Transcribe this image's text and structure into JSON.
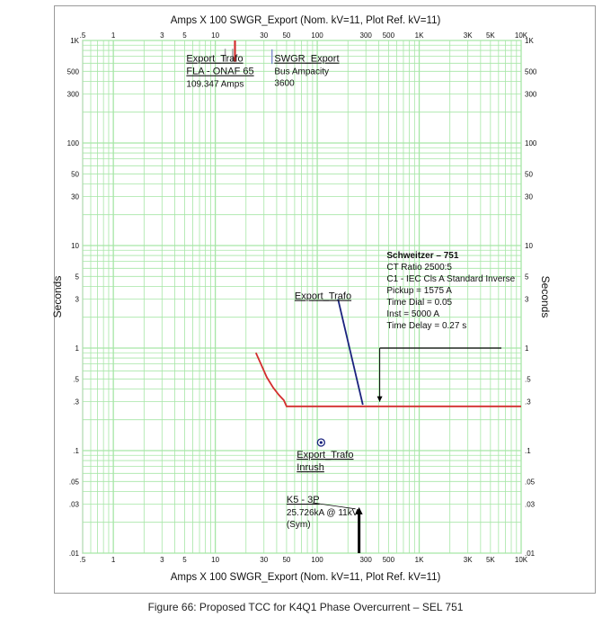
{
  "caption": "Figure 66: Proposed TCC for K4Q1 Phase Overcurrent – SEL 751",
  "chart_data": {
    "type": "line",
    "title_top": "Amps  X  100   SWGR_Export (Nom. kV=11, Plot Ref. kV=11)",
    "title_bottom": "Amps  X  100   SWGR_Export (Nom. kV=11, Plot Ref. kV=11)",
    "xlabel": "",
    "ylabel_left": "Seconds",
    "ylabel_right": "Seconds",
    "x_scale": "log",
    "y_scale": "log",
    "xlim": [
      0.5,
      10000
    ],
    "ylim": [
      0.01,
      1000
    ],
    "grid": true,
    "colors": {
      "grid": "#a6e6a6",
      "relay": "#d32f2f",
      "trafo": "#1a237e",
      "fault": "#000000",
      "marker": "#1a237e"
    },
    "x_ticks": [
      {
        "v": 0.5,
        "t": ".5"
      },
      {
        "v": 1,
        "t": "1"
      },
      {
        "v": 3,
        "t": "3"
      },
      {
        "v": 5,
        "t": "5"
      },
      {
        "v": 10,
        "t": "10"
      },
      {
        "v": 30,
        "t": "30"
      },
      {
        "v": 50,
        "t": "50"
      },
      {
        "v": 100,
        "t": "100"
      },
      {
        "v": 300,
        "t": "300"
      },
      {
        "v": 500,
        "t": "500"
      },
      {
        "v": 1000,
        "t": "1K"
      },
      {
        "v": 3000,
        "t": "3K"
      },
      {
        "v": 5000,
        "t": "5K"
      },
      {
        "v": 10000,
        "t": "10K"
      }
    ],
    "y_ticks": [
      {
        "v": 0.01,
        "t": ".01"
      },
      {
        "v": 0.03,
        "t": ".03"
      },
      {
        "v": 0.05,
        "t": ".05"
      },
      {
        "v": 0.1,
        "t": ".1"
      },
      {
        "v": 0.3,
        "t": ".3"
      },
      {
        "v": 0.5,
        "t": ".5"
      },
      {
        "v": 1,
        "t": "1"
      },
      {
        "v": 3,
        "t": "3"
      },
      {
        "v": 5,
        "t": "5"
      },
      {
        "v": 10,
        "t": "10"
      },
      {
        "v": 30,
        "t": "30"
      },
      {
        "v": 50,
        "t": "50"
      },
      {
        "v": 100,
        "t": "100"
      },
      {
        "v": 300,
        "t": "300"
      },
      {
        "v": 500,
        "t": "500"
      },
      {
        "v": 1000,
        "t": "1K"
      }
    ],
    "series": [
      {
        "id": "relay-curve",
        "color": "#d32f2f",
        "x": [
          25,
          28,
          32,
          37,
          42,
          47,
          50,
          60,
          100,
          300,
          1000,
          10000
        ],
        "y": [
          0.9,
          0.7,
          0.52,
          0.41,
          0.35,
          0.31,
          0.27,
          0.27,
          0.27,
          0.27,
          0.27,
          0.27
        ]
      },
      {
        "id": "export-trafo-damage",
        "color": "#1a237e",
        "x": [
          160,
          280
        ],
        "y": [
          3.0,
          0.28
        ]
      },
      {
        "id": "fla-marker",
        "color": "#d32f2f",
        "x": [
          15.6,
          15.6
        ],
        "y": [
          620,
          1000
        ]
      }
    ],
    "bus_ampacity_marker": {
      "x": 36,
      "y": [
        590,
        820
      ],
      "color": "#7986cb"
    },
    "fla_grey_marks": {
      "x": [
        12.5,
        14.8
      ],
      "y": [
        620,
        830
      ],
      "color": "#9e9e9e"
    },
    "inrush_point": {
      "x": 109,
      "y": 0.12
    },
    "fault_arrow": {
      "x": 257.26,
      "y_from": 0.01,
      "y_to": 0.027
    },
    "relay_leader": {
      "x": 410,
      "y_from": 1.0,
      "y_to": 0.3,
      "line_to_x": 6400
    },
    "annotations": [
      {
        "id": "fla-title",
        "lines": [
          "Export_Trafo",
          "FLA - ONAF 65"
        ],
        "underline": true,
        "x": 5.2,
        "y": 620,
        "extra": [
          "109.347 Amps"
        ]
      },
      {
        "id": "bus-title",
        "lines": [
          "SWGR_Export"
        ],
        "underline": true,
        "x": 38,
        "y": 620,
        "extra": [
          "Bus Ampacity",
          "3600"
        ]
      },
      {
        "id": "trafo-label",
        "lines": [
          "Export_Trafo"
        ],
        "underline": true,
        "x": 60,
        "y": 3.0,
        "extra": []
      },
      {
        "id": "inrush-label",
        "lines": [
          "Export_Trafo",
          "Inrush"
        ],
        "underline": true,
        "x": 63,
        "y": 0.085,
        "extra": []
      },
      {
        "id": "fault-label",
        "lines": [
          "K5 - 3P"
        ],
        "underline": true,
        "x": 50,
        "y": 0.031,
        "extra": [
          "25.726kA @ 11kV",
          "(Sym)"
        ]
      },
      {
        "id": "relay-settings",
        "lines": [],
        "underline": false,
        "x": 480,
        "y": 7.5,
        "bold": "Schweitzer – 751",
        "extra": [
          "CT Ratio 2500:5",
          "C1 - IEC Cls A Standard Inverse",
          "Pickup = 1575 A",
          "Time Dial = 0.05",
          "Inst = 5000 A",
          "Time Delay = 0.27 s"
        ]
      }
    ]
  }
}
